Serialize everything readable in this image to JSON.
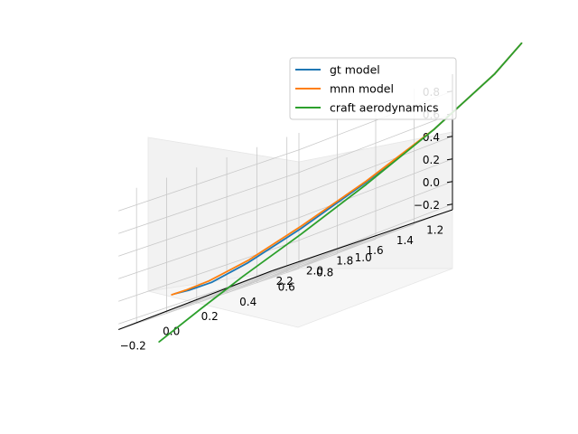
{
  "chart_data": {
    "type": "line",
    "projection": "3d",
    "title": "",
    "xlabel": "",
    "ylabel": "",
    "zlabel": "",
    "grid": true,
    "legend_position": "top-right",
    "x_ticks": [
      "−0.2",
      "0.0",
      "0.2",
      "0.4",
      "0.6",
      "0.8",
      "1.0"
    ],
    "y_ticks": [
      "1.2",
      "1.4",
      "1.6",
      "1.8",
      "2.0",
      "2.2"
    ],
    "z_ticks": [
      "−0.2",
      "0.0",
      "0.2",
      "0.4",
      "0.6",
      "0.8"
    ],
    "series": [
      {
        "name": "gt model",
        "color": "#1f77b4",
        "points": [
          [
            0.96,
            1.12,
            0.99
          ],
          [
            0.92,
            1.25,
            0.8
          ],
          [
            0.8,
            1.5,
            0.5
          ],
          [
            0.62,
            1.72,
            0.25
          ],
          [
            0.42,
            1.9,
            0.05
          ],
          [
            0.22,
            2.0,
            -0.08
          ],
          [
            0.05,
            2.02,
            -0.13
          ],
          [
            -0.1,
            1.98,
            -0.12
          ],
          [
            -0.22,
            1.92,
            -0.1
          ]
        ]
      },
      {
        "name": "mnn model",
        "color": "#ff7f0e",
        "points": [
          [
            0.96,
            1.12,
            0.99
          ],
          [
            0.92,
            1.25,
            0.8
          ],
          [
            0.8,
            1.5,
            0.5
          ],
          [
            0.62,
            1.72,
            0.26
          ],
          [
            0.42,
            1.9,
            0.07
          ],
          [
            0.24,
            2.02,
            -0.06
          ],
          [
            0.06,
            2.05,
            -0.11
          ],
          [
            -0.1,
            2.0,
            -0.11
          ],
          [
            -0.22,
            1.94,
            -0.1
          ]
        ]
      },
      {
        "name": "craft aerodynamics",
        "color": "#2ca02c",
        "points": [
          [
            0.96,
            1.12,
            0.99
          ],
          [
            0.92,
            1.25,
            0.8
          ],
          [
            0.8,
            1.5,
            0.5
          ],
          [
            0.62,
            1.72,
            0.23
          ],
          [
            0.42,
            1.9,
            0.0
          ],
          [
            0.2,
            2.0,
            -0.18
          ],
          [
            0.0,
            2.03,
            -0.33
          ],
          [
            -0.2,
            2.05,
            -0.48
          ]
        ]
      }
    ]
  }
}
